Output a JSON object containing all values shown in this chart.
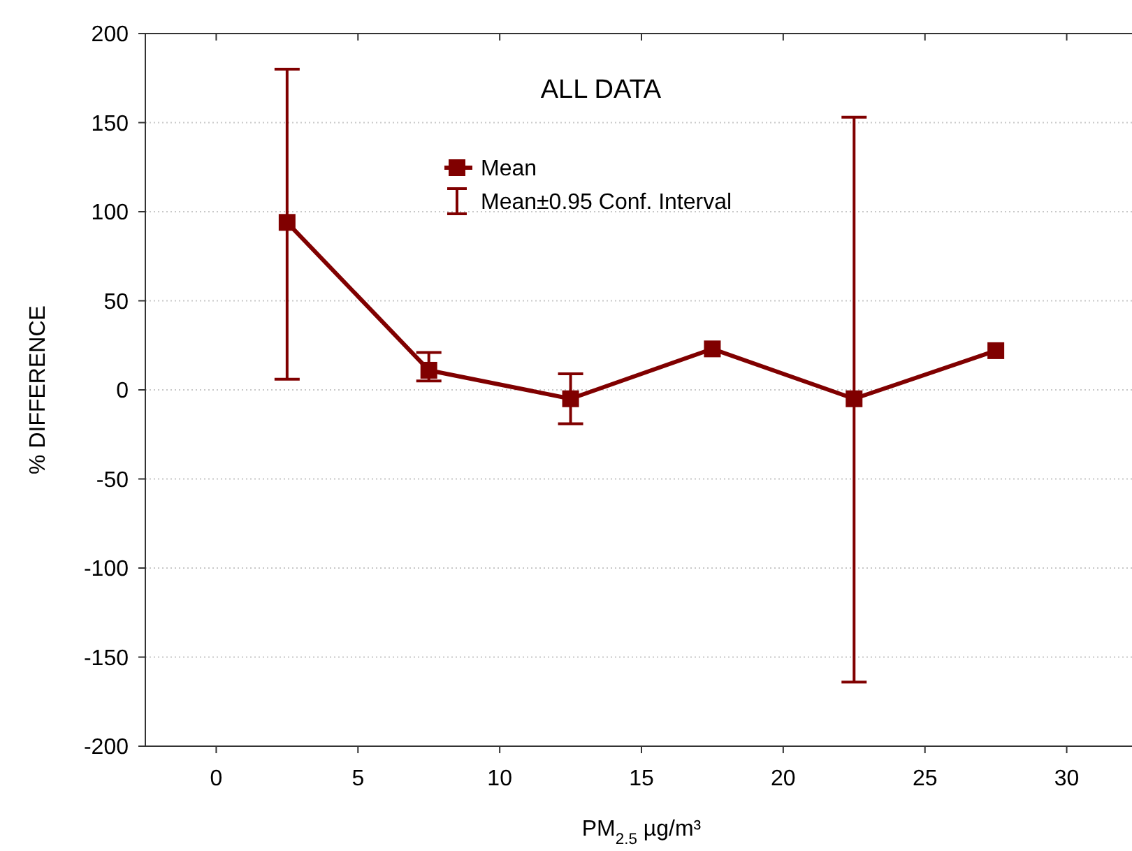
{
  "chart_data": {
    "type": "line",
    "title": "ALL DATA",
    "xlabel": "PM$_{2.5}$ µg/m³",
    "ylabel": "% DIFFERENCE",
    "x": [
      2.5,
      7.5,
      12.5,
      17.5,
      22.5,
      27.5
    ],
    "series": [
      {
        "name": "Mean",
        "color": "#800000",
        "values": [
          94,
          11,
          -5,
          23,
          -5,
          22
        ],
        "errors": [
          [
            6,
            180
          ],
          [
            5,
            21
          ],
          [
            -19,
            9
          ],
          null,
          [
            -164,
            153
          ],
          null
        ]
      }
    ],
    "annotations": [
      "Mean±0.95 Conf. Interval"
    ],
    "xlim": [
      -2.5,
      32.5
    ],
    "xticks": [
      0,
      5,
      10,
      15,
      20,
      25,
      30
    ],
    "ylim": [
      -200,
      200
    ],
    "yticks": [
      -200,
      -150,
      -100,
      -50,
      0,
      50,
      100,
      150,
      200
    ],
    "grid": "y",
    "legend": "top",
    "marker": "square",
    "line_style": "solid"
  }
}
